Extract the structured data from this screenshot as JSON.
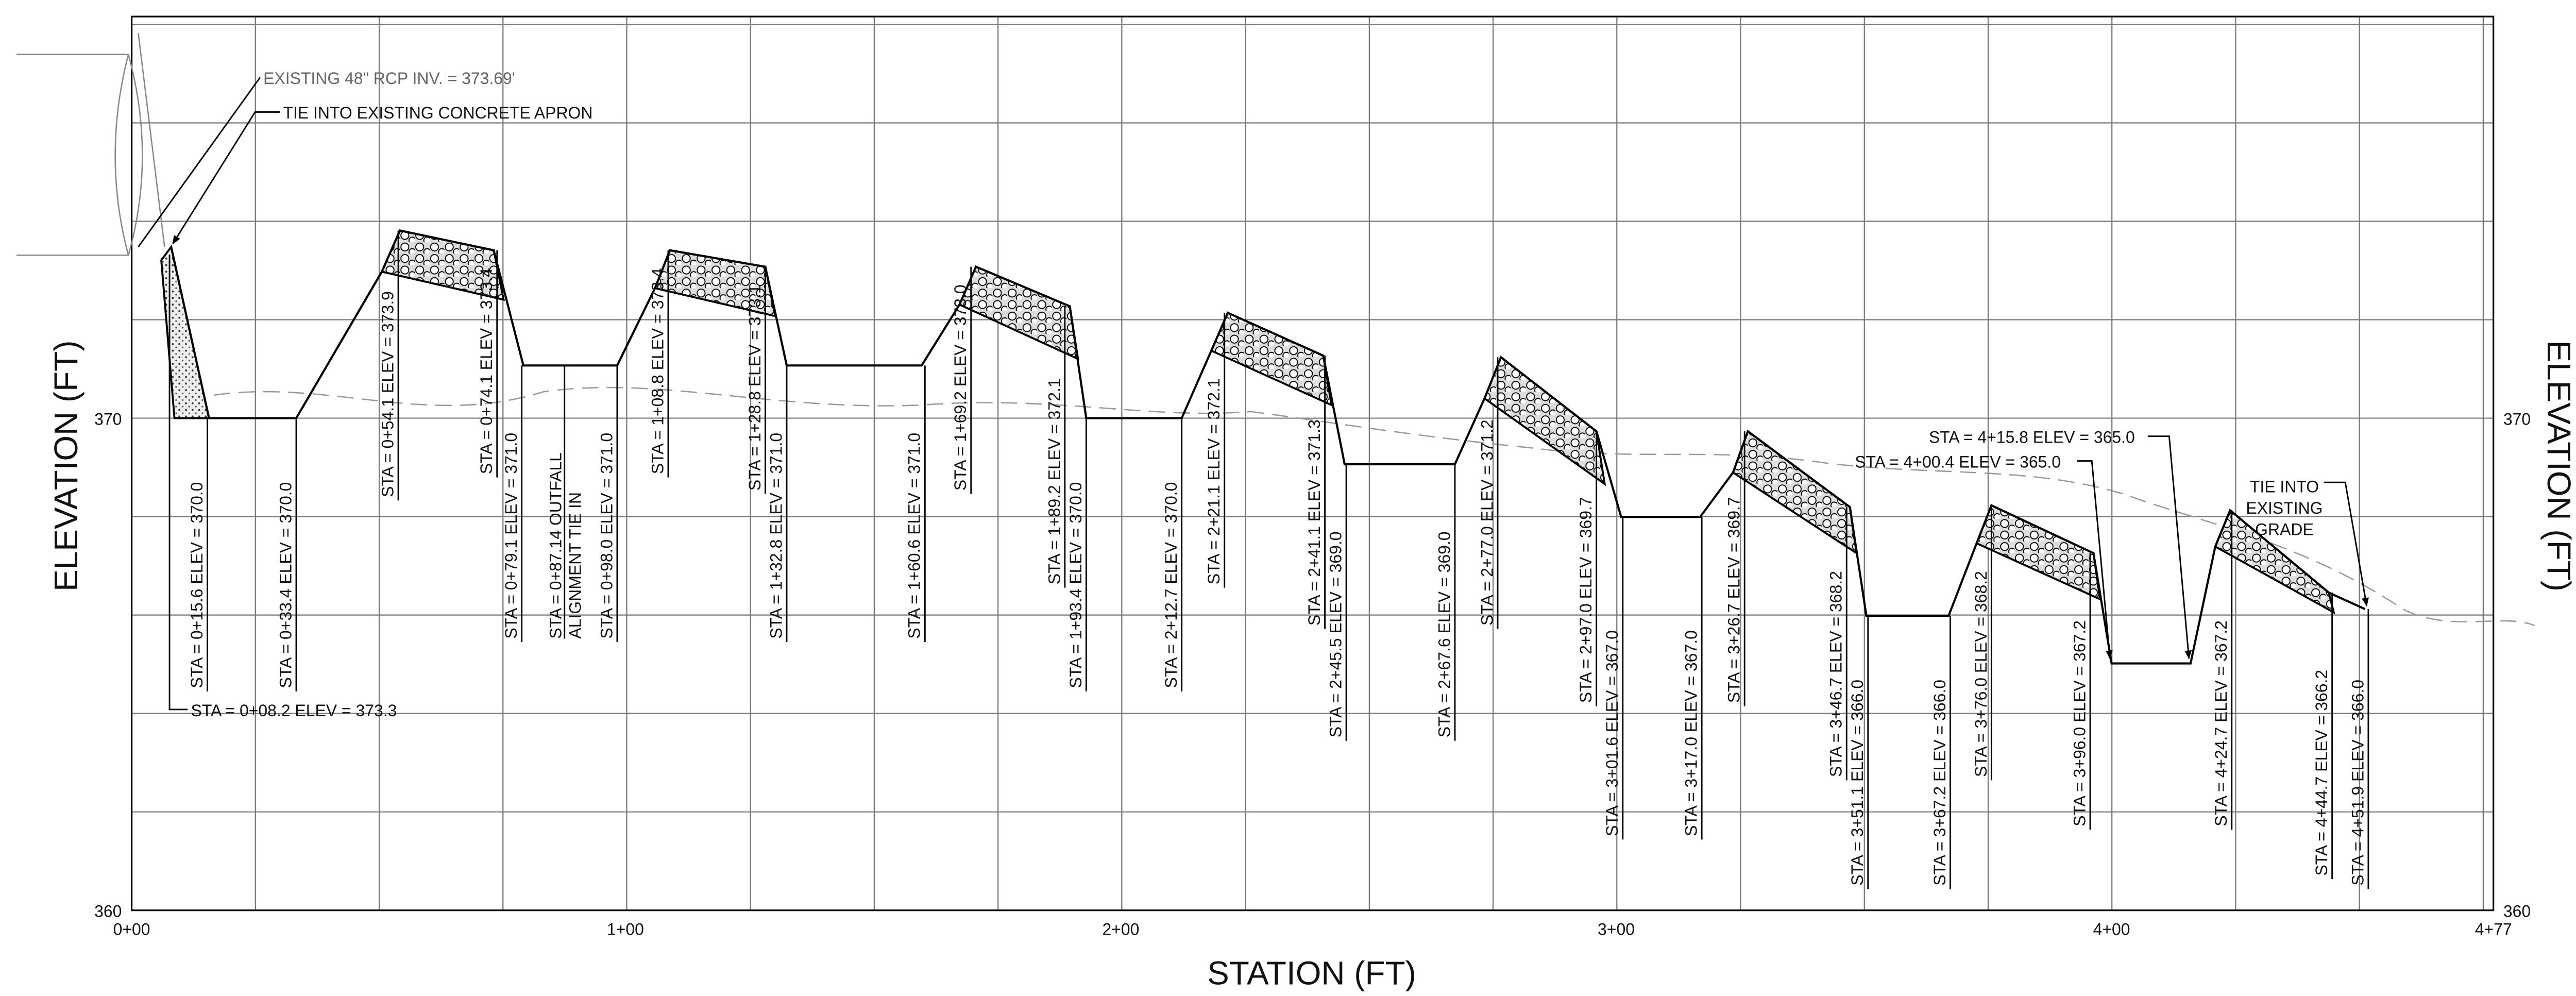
{
  "axes": {
    "y_label": "ELEVATION (FT)",
    "y2_label": "ELEVATION (FT)",
    "x_label": "STATION (FT)",
    "y_ticks": [
      "370",
      "360"
    ],
    "y2_ticks": [
      "370",
      "360"
    ],
    "x_ticks": [
      "0+00",
      "1+00",
      "2+00",
      "3+00",
      "4+00",
      "4+77"
    ]
  },
  "annotations": {
    "existing_pipe": "EXISTING 48\" RCP INV. = 373.69'",
    "tie_apron": "TIE INTO EXISTING CONCRETE APRON",
    "start_station": "STA = 0+08.2 ELEV =  373.3",
    "sta_415": "STA = 4+15.8 ELEV =  365.0",
    "sta_400": "STA = 4+00.4 ELEV =  365.0",
    "tie_grade": [
      "TIE INTO",
      "EXISTING",
      "GRADE"
    ],
    "outfall": [
      "STA = 0+87.14 OUTFALL",
      "ALIGNMENT TIE IN"
    ]
  },
  "station_labels": [
    "STA = 0+15.6 ELEV =  370.0",
    "STA = 0+33.4 ELEV =  370.0",
    "STA = 0+54.1 ELEV =  373.9",
    "STA = 0+74.1 ELEV =  373.4",
    "STA = 0+79.1 ELEV =  371.0",
    "STA = 0+98.0 ELEV =  371.0",
    "STA = 1+08.8 ELEV =  373.4",
    "STA = 1+28.8 ELEV =  373.1",
    "STA = 1+32.8 ELEV =  371.0",
    "STA = 1+60.6 ELEV =  371.0",
    "STA = 1+69.2 ELEV =  373.0",
    "STA = 1+89.2 ELEV =  372.1",
    "STA = 1+93.4 ELEV =  370.0",
    "STA = 2+12.7 ELEV =  370.0",
    "STA = 2+21.1 ELEV =  372.1",
    "STA = 2+41.1 ELEV =  371.3",
    "STA = 2+45.5 ELEV =  369.0",
    "STA = 2+67.6 ELEV =  369.0",
    "STA = 2+77.0 ELEV =  371.2",
    "STA = 2+97.0 ELEV =  369.7",
    "STA = 3+01.6 ELEV =  367.0",
    "STA = 3+17.0 ELEV =  367.0",
    "STA = 3+26.7 ELEV =  369.7",
    "STA = 3+46.7 ELEV =  368.2",
    "STA = 3+51.1 ELEV =  366.0",
    "STA = 3+67.2 ELEV =  366.0",
    "STA = 3+76.0 ELEV =  368.2",
    "STA = 3+96.0 ELEV =  367.2",
    "STA = 4+24.7 ELEV =  367.2",
    "STA = 4+44.7 ELEV =  366.2",
    "STA = 4+51.9 ELEV =  366.0"
  ]
}
